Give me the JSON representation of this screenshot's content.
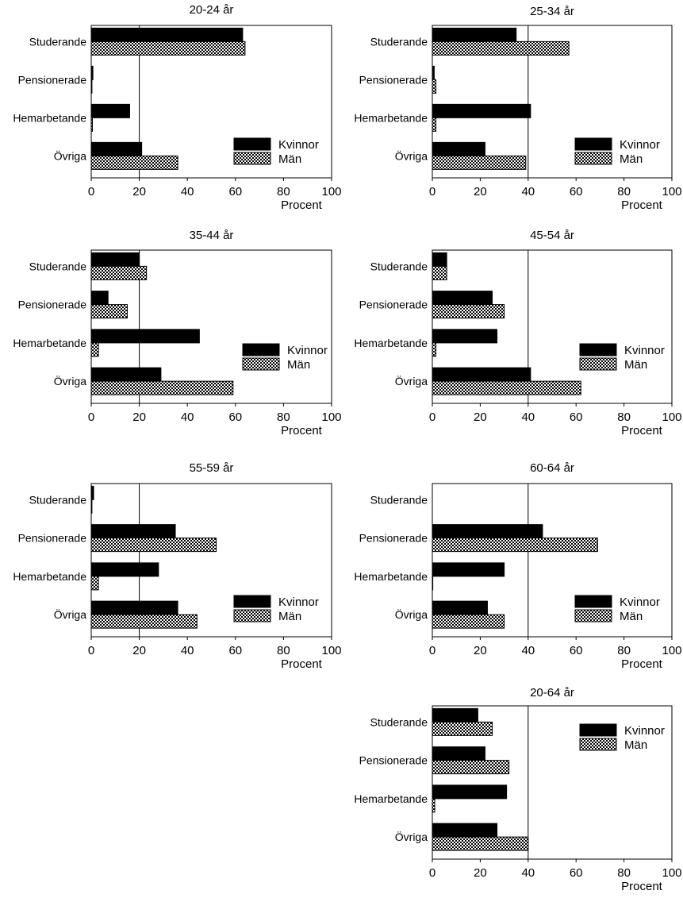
{
  "chart_data": [
    {
      "type": "bar",
      "title": "20-24 år",
      "categories": [
        "Studerande",
        "Pensionerade",
        "Hemarbetande",
        "Övriga"
      ],
      "series": [
        {
          "name": "Kvinnor",
          "values": [
            63,
            0.7,
            16,
            21
          ]
        },
        {
          "name": "Män",
          "values": [
            64,
            0.3,
            0.5,
            36
          ]
        }
      ],
      "xlabel": "Procent",
      "xlim": [
        0,
        100
      ],
      "xticks": [
        0,
        20,
        40,
        60,
        80,
        100
      ],
      "gridline_at": 20,
      "legend_position": "lower-right"
    },
    {
      "type": "bar",
      "title": "25-34 år",
      "categories": [
        "Studerande",
        "Pensionerade",
        "Hemarbetande",
        "Övriga"
      ],
      "series": [
        {
          "name": "Kvinnor",
          "values": [
            35,
            0.8,
            41,
            22
          ]
        },
        {
          "name": "Män",
          "values": [
            57,
            1.5,
            1.5,
            39
          ]
        }
      ],
      "xlabel": "Procent",
      "xlim": [
        0,
        100
      ],
      "xticks": [
        0,
        20,
        40,
        60,
        80,
        100
      ],
      "gridline_at": 40,
      "legend_position": "lower-right"
    },
    {
      "type": "bar",
      "title": "35-44 år",
      "categories": [
        "Studerande",
        "Pensionerade",
        "Hemarbetande",
        "Övriga"
      ],
      "series": [
        {
          "name": "Kvinnor",
          "values": [
            20,
            7,
            45,
            29
          ]
        },
        {
          "name": "Män",
          "values": [
            23,
            15,
            3,
            59
          ]
        }
      ],
      "xlabel": "Procent",
      "xlim": [
        0,
        100
      ],
      "xticks": [
        0,
        20,
        40,
        60,
        80,
        100
      ],
      "gridline_at": 20,
      "legend_position": "lower-right"
    },
    {
      "type": "bar",
      "title": "45-54 år",
      "categories": [
        "Studerande",
        "Pensionerade",
        "Hemarbetande",
        "Övriga"
      ],
      "series": [
        {
          "name": "Kvinnor",
          "values": [
            6,
            25,
            27,
            41
          ]
        },
        {
          "name": "Män",
          "values": [
            6,
            30,
            1.5,
            62
          ]
        }
      ],
      "xlabel": "Procent",
      "xlim": [
        0,
        100
      ],
      "xticks": [
        0,
        20,
        40,
        60,
        80,
        100
      ],
      "gridline_at": 40,
      "legend_position": "lower-right"
    },
    {
      "type": "bar",
      "title": "55-59 år",
      "categories": [
        "Studerande",
        "Pensionerade",
        "Hemarbetande",
        "Övriga"
      ],
      "series": [
        {
          "name": "Kvinnor",
          "values": [
            1,
            35,
            28,
            36
          ]
        },
        {
          "name": "Män",
          "values": [
            0.3,
            52,
            3,
            44
          ]
        }
      ],
      "xlabel": "Procent",
      "xlim": [
        0,
        100
      ],
      "xticks": [
        0,
        20,
        40,
        60,
        80,
        100
      ],
      "gridline_at": 20,
      "legend_position": "lower-right"
    },
    {
      "type": "bar",
      "title": "60-64 år",
      "categories": [
        "Studerande",
        "Pensionerade",
        "Hemarbetande",
        "Övriga"
      ],
      "series": [
        {
          "name": "Kvinnor",
          "values": [
            0,
            46,
            30,
            23
          ]
        },
        {
          "name": "Män",
          "values": [
            0,
            69,
            0.2,
            30
          ]
        }
      ],
      "xlabel": "Procent",
      "xlim": [
        0,
        100
      ],
      "xticks": [
        0,
        20,
        40,
        60,
        80,
        100
      ],
      "gridline_at": 40,
      "legend_position": "lower-right"
    },
    {
      "type": "bar",
      "title": "20-64 år",
      "categories": [
        "Studerande",
        "Pensionerade",
        "Hemarbetande",
        "Övriga"
      ],
      "series": [
        {
          "name": "Kvinnor",
          "values": [
            19,
            22,
            31,
            27
          ]
        },
        {
          "name": "Män",
          "values": [
            25,
            32,
            1,
            40
          ]
        }
      ],
      "xlabel": "Procent",
      "xlim": [
        0,
        100
      ],
      "xticks": [
        0,
        20,
        40,
        60,
        80,
        100
      ],
      "gridline_at": 40,
      "legend_position": "top-right"
    }
  ],
  "colors": {
    "kvinnor_fill": "#000000",
    "man_fill": "dotted black on white"
  }
}
